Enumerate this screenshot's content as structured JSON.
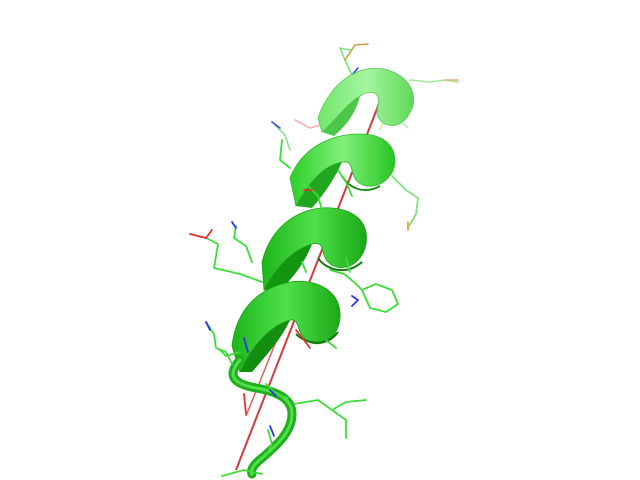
{
  "scene": {
    "background": "#ffffff",
    "subject": "protein-alpha-helix-cartoon-with-side-chain-sticks",
    "colors": {
      "ribbon_light": "#8ef08a",
      "ribbon_mid": "#3fda3a",
      "ribbon_dark": "#1faa1c",
      "ribbon_shadow": "#0f7a0d",
      "stick_carbon": "#3ddc3a",
      "stick_nitrogen": "#2a36e8",
      "stick_oxygen": "#e03030",
      "stick_sulfur": "#d9b030",
      "axis": "#d03a3a"
    }
  }
}
